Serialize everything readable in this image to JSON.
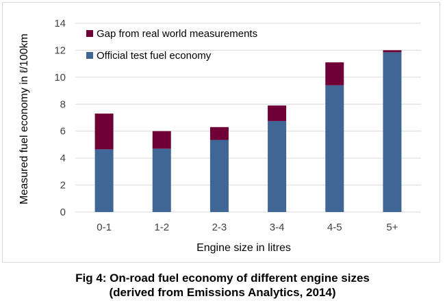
{
  "chart_data": {
    "type": "bar",
    "stacked": true,
    "categories": [
      "0-1",
      "1-2",
      "2-3",
      "3-4",
      "4-5",
      "5+"
    ],
    "series": [
      {
        "name": "Official test fuel economy",
        "values": [
          4.65,
          4.7,
          5.35,
          6.75,
          9.4,
          11.85
        ],
        "color": "#3F6695"
      },
      {
        "name": "Gap from real world measurements",
        "values": [
          2.65,
          1.3,
          0.95,
          1.15,
          1.7,
          0.15
        ],
        "color": "#6E0036"
      }
    ],
    "xlabel": "Engine size in litres",
    "ylabel": "Measured fuel economy in ℓ/100km",
    "ylim": [
      0,
      14
    ],
    "yticks": [
      0,
      2,
      4,
      6,
      8,
      10,
      12,
      14
    ],
    "grid": "horizontal",
    "legend_position": "top-left"
  },
  "caption": {
    "line1": "Fig 4: On-road fuel economy of different engine sizes",
    "line2": "(derived from Emissions Analytics, 2014)"
  }
}
